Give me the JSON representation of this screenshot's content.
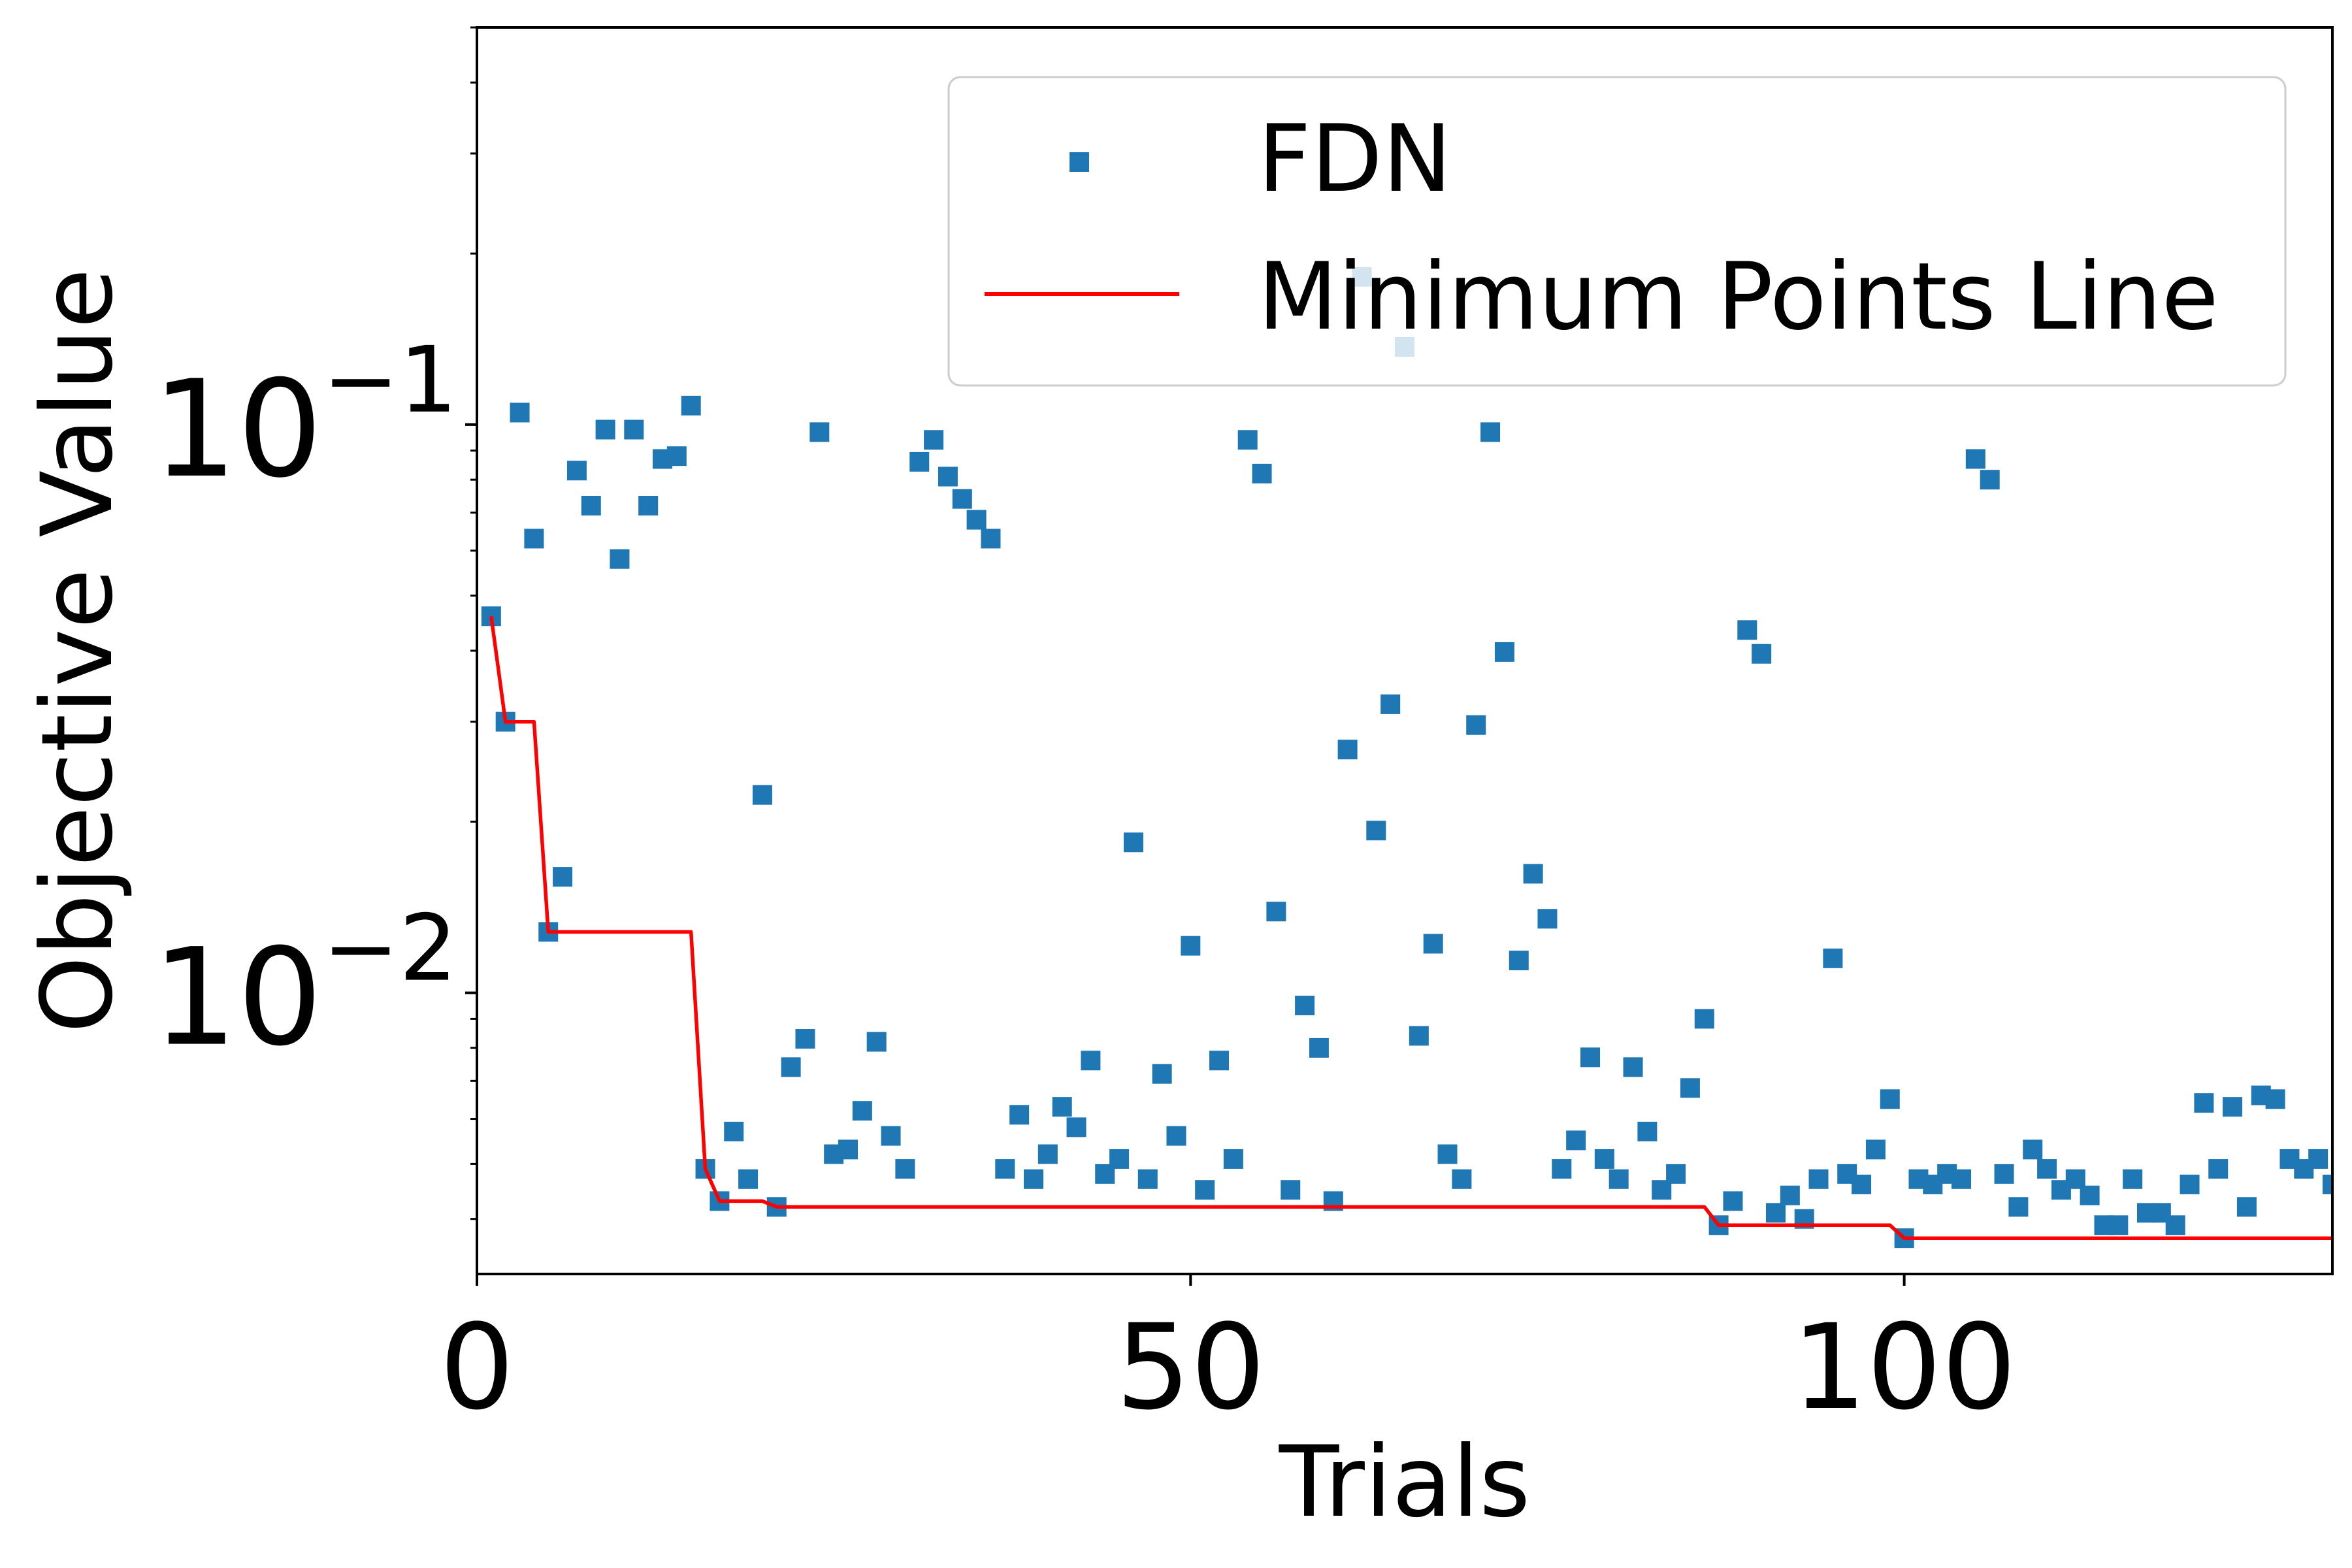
{
  "chart_data": {
    "type": "scatter",
    "xlabel": "Trials",
    "ylabel": "Objective Value",
    "xlim": [
      0,
      130
    ],
    "ylim": [
      0.0032,
      0.5
    ],
    "yscale": "log",
    "grid": false,
    "legend_position": "top-right",
    "x_ticks": [
      {
        "value": 0,
        "label": "0"
      },
      {
        "value": 50,
        "label": "50"
      },
      {
        "value": 100,
        "label": "100"
      }
    ],
    "y_ticks": [
      {
        "value": 0.01,
        "base": "10",
        "exp": "−2"
      },
      {
        "value": 0.1,
        "base": "10",
        "exp": "−1"
      }
    ],
    "series": [
      {
        "name": "FDN",
        "kind": "scatter",
        "marker": "square",
        "color": "#1f77b4",
        "points": [
          [
            1,
            0.046
          ],
          [
            2,
            0.03
          ],
          [
            3,
            0.105
          ],
          [
            4,
            0.063
          ],
          [
            5,
            0.0128
          ],
          [
            6,
            0.016
          ],
          [
            7,
            0.083
          ],
          [
            8,
            0.072
          ],
          [
            9,
            0.098
          ],
          [
            10,
            0.058
          ],
          [
            11,
            0.098
          ],
          [
            12,
            0.072
          ],
          [
            13,
            0.087
          ],
          [
            14,
            0.088
          ],
          [
            15,
            0.108
          ],
          [
            16,
            0.0049
          ],
          [
            17,
            0.0043
          ],
          [
            18,
            0.0057
          ],
          [
            19,
            0.0047
          ],
          [
            20,
            0.0223
          ],
          [
            21,
            0.0042
          ],
          [
            22,
            0.0074
          ],
          [
            23,
            0.0083
          ],
          [
            24,
            0.097
          ],
          [
            25,
            0.0052
          ],
          [
            26,
            0.0053
          ],
          [
            27,
            0.0062
          ],
          [
            28,
            0.0082
          ],
          [
            29,
            0.0056
          ],
          [
            30,
            0.0049
          ],
          [
            31,
            0.086
          ],
          [
            32,
            0.094
          ],
          [
            33,
            0.081
          ],
          [
            34,
            0.074
          ],
          [
            35,
            0.068
          ],
          [
            36,
            0.063
          ],
          [
            37,
            0.0049
          ],
          [
            38,
            0.0061
          ],
          [
            39,
            0.0047
          ],
          [
            40,
            0.0052
          ],
          [
            41,
            0.0063
          ],
          [
            42,
            0.0058
          ],
          [
            43,
            0.0076
          ],
          [
            44,
            0.0048
          ],
          [
            45,
            0.0051
          ],
          [
            46,
            0.0184
          ],
          [
            47,
            0.0047
          ],
          [
            48,
            0.0072
          ],
          [
            49,
            0.0056
          ],
          [
            50,
            0.0121
          ],
          [
            51,
            0.0045
          ],
          [
            52,
            0.0076
          ],
          [
            53,
            0.0051
          ],
          [
            54,
            0.094
          ],
          [
            55,
            0.082
          ],
          [
            56,
            0.0139
          ],
          [
            57,
            0.0045
          ],
          [
            58,
            0.0095
          ],
          [
            59,
            0.008
          ],
          [
            60,
            0.0043
          ],
          [
            61,
            0.0268
          ],
          [
            62,
            0.182
          ],
          [
            63,
            0.0193
          ],
          [
            64,
            0.0322
          ],
          [
            65,
            0.137
          ],
          [
            66,
            0.0084
          ],
          [
            67,
            0.0122
          ],
          [
            68,
            0.0052
          ],
          [
            69,
            0.0047
          ],
          [
            70,
            0.0296
          ],
          [
            71,
            0.097
          ],
          [
            72,
            0.0398
          ],
          [
            73,
            0.0114
          ],
          [
            74,
            0.0162
          ],
          [
            75,
            0.0135
          ],
          [
            76,
            0.0049
          ],
          [
            77,
            0.0055
          ],
          [
            78,
            0.0077
          ],
          [
            79,
            0.0051
          ],
          [
            80,
            0.0047
          ],
          [
            81,
            0.0074
          ],
          [
            82,
            0.0057
          ],
          [
            83,
            0.0045
          ],
          [
            84,
            0.0048
          ],
          [
            85,
            0.0068
          ],
          [
            86,
            0.009
          ],
          [
            87,
            0.0039
          ],
          [
            88,
            0.0043
          ],
          [
            89,
            0.0435
          ],
          [
            90,
            0.0395
          ],
          [
            91,
            0.0041
          ],
          [
            92,
            0.0044
          ],
          [
            93,
            0.004
          ],
          [
            94,
            0.0047
          ],
          [
            95,
            0.0115
          ],
          [
            96,
            0.0048
          ],
          [
            97,
            0.0046
          ],
          [
            98,
            0.0053
          ],
          [
            99,
            0.0065
          ],
          [
            100,
            0.0037
          ],
          [
            101,
            0.0047
          ],
          [
            102,
            0.0046
          ],
          [
            103,
            0.0048
          ],
          [
            104,
            0.0047
          ],
          [
            105,
            0.087
          ],
          [
            106,
            0.08
          ],
          [
            107,
            0.0048
          ],
          [
            108,
            0.0042
          ],
          [
            109,
            0.0053
          ],
          [
            110,
            0.0049
          ],
          [
            111,
            0.0045
          ],
          [
            112,
            0.0047
          ],
          [
            113,
            0.0044
          ],
          [
            114,
            0.0039
          ],
          [
            115,
            0.0039
          ],
          [
            116,
            0.0047
          ],
          [
            117,
            0.0041
          ],
          [
            118,
            0.0041
          ],
          [
            119,
            0.0039
          ],
          [
            120,
            0.0046
          ],
          [
            121,
            0.0064
          ],
          [
            122,
            0.0049
          ],
          [
            123,
            0.0063
          ],
          [
            124,
            0.0042
          ],
          [
            125,
            0.0066
          ],
          [
            126,
            0.0065
          ],
          [
            127,
            0.0051
          ],
          [
            128,
            0.0049
          ],
          [
            129,
            0.0051
          ],
          [
            130,
            0.0046
          ]
        ]
      },
      {
        "name": "Minimum Points Line",
        "kind": "line",
        "color": "#ff0000",
        "points": [
          [
            1,
            0.046
          ],
          [
            2,
            0.03
          ],
          [
            4,
            0.03
          ],
          [
            5,
            0.0128
          ],
          [
            15,
            0.0128
          ],
          [
            16,
            0.0049
          ],
          [
            17,
            0.0043
          ],
          [
            20,
            0.0043
          ],
          [
            21,
            0.0042
          ],
          [
            86,
            0.0042
          ],
          [
            87,
            0.0039
          ],
          [
            99,
            0.0039
          ],
          [
            100,
            0.0037
          ],
          [
            130,
            0.0037
          ]
        ]
      }
    ]
  }
}
